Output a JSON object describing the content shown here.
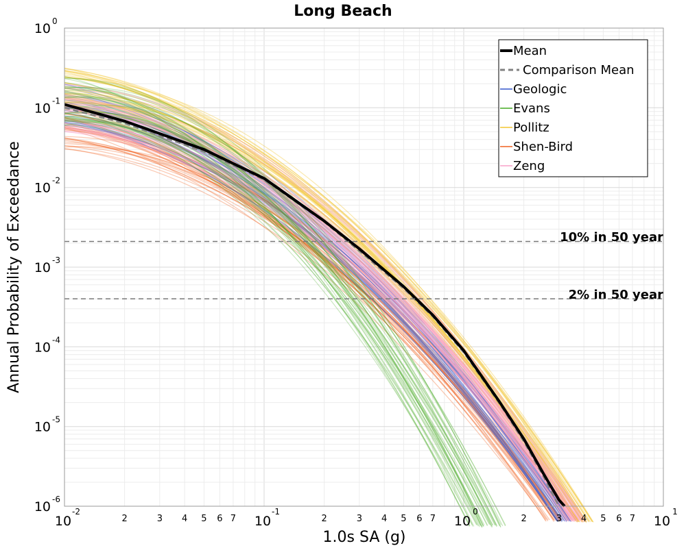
{
  "chart_data": {
    "type": "line",
    "title": "Long Beach",
    "xlabel": "1.0s SA (g)",
    "ylabel": "Annual Probability of Exceedance",
    "x_scale": "log",
    "y_scale": "log",
    "xlim": [
      0.01,
      10
    ],
    "ylim": [
      1e-06,
      1
    ],
    "grid": true,
    "legend_position": "top-right",
    "x_major_ticks": [
      {
        "base": "10",
        "exp": "-2",
        "value": 0.01
      },
      {
        "base": "10",
        "exp": "-1",
        "value": 0.1
      },
      {
        "base": "10",
        "exp": "0",
        "value": 1
      },
      {
        "base": "10",
        "exp": "1",
        "value": 10
      }
    ],
    "x_minor_ticks": [
      {
        "label": "2",
        "value": 0.02
      },
      {
        "label": "3",
        "value": 0.03
      },
      {
        "label": "4",
        "value": 0.04
      },
      {
        "label": "5",
        "value": 0.05
      },
      {
        "label": "6",
        "value": 0.06
      },
      {
        "label": "7",
        "value": 0.07
      },
      {
        "label": "2",
        "value": 0.2
      },
      {
        "label": "3",
        "value": 0.3
      },
      {
        "label": "4",
        "value": 0.4
      },
      {
        "label": "5",
        "value": 0.5
      },
      {
        "label": "6",
        "value": 0.6
      },
      {
        "label": "7",
        "value": 0.7
      },
      {
        "label": "2",
        "value": 2
      },
      {
        "label": "3",
        "value": 3
      },
      {
        "label": "4",
        "value": 4
      },
      {
        "label": "5",
        "value": 5
      },
      {
        "label": "6",
        "value": 6
      },
      {
        "label": "7",
        "value": 7
      }
    ],
    "y_major_ticks": [
      {
        "base": "10",
        "exp": "0",
        "value": 1
      },
      {
        "base": "10",
        "exp": "-1",
        "value": 0.1
      },
      {
        "base": "10",
        "exp": "-2",
        "value": 0.01
      },
      {
        "base": "10",
        "exp": "-3",
        "value": 0.001
      },
      {
        "base": "10",
        "exp": "-4",
        "value": 0.0001
      },
      {
        "base": "10",
        "exp": "-5",
        "value": 1e-05
      },
      {
        "base": "10",
        "exp": "-6",
        "value": 1e-06
      }
    ],
    "reference_lines": [
      {
        "label": "10% in 50 year",
        "y": 0.0021
      },
      {
        "label": "2% in 50 year",
        "y": 0.0004
      }
    ],
    "legend": [
      {
        "name": "Mean",
        "color": "#000000",
        "style": "solid-thick"
      },
      {
        "name": "Comparison Mean",
        "color": "#808080",
        "style": "dashed"
      },
      {
        "name": "Geologic",
        "color": "#3355cc",
        "style": "solid"
      },
      {
        "name": "Evans",
        "color": "#44aa22",
        "style": "solid"
      },
      {
        "name": "Pollitz",
        "color": "#f2c531",
        "style": "solid"
      },
      {
        "name": "Shen-Bird",
        "color": "#f06020",
        "style": "solid"
      },
      {
        "name": "Zeng",
        "color": "#f9a0c8",
        "style": "solid"
      }
    ],
    "mean_curve": {
      "name": "Mean",
      "x": [
        0.01,
        0.02,
        0.05,
        0.1,
        0.2,
        0.3,
        0.5,
        0.7,
        1.0,
        1.5,
        2.0,
        2.5,
        3.0,
        3.2
      ],
      "y": [
        0.11,
        0.068,
        0.03,
        0.013,
        0.0038,
        0.0017,
        0.00057,
        0.00025,
        9e-05,
        2.1e-05,
        7e-06,
        2.6e-06,
        1.2e-06,
        1e-06
      ]
    },
    "comparison_mean_curve": {
      "name": "Comparison Mean",
      "x": [
        0.01,
        0.02,
        0.05,
        0.1,
        0.2,
        0.3,
        0.5,
        0.7,
        1.0,
        1.5,
        2.0,
        2.5,
        3.0
      ],
      "y": [
        0.1,
        0.064,
        0.028,
        0.0125,
        0.0037,
        0.0016,
        0.00054,
        0.00024,
        8.5e-05,
        2e-05,
        6.5e-06,
        2.4e-06,
        1e-06
      ]
    },
    "series": [
      {
        "name": "Geologic",
        "x_end_at_1e-6": 2.9,
        "y_at_0.01": [
          0.06,
          0.2
        ]
      },
      {
        "name": "Evans",
        "x_end_at_1e-6": 1.2,
        "y_at_0.01": [
          0.06,
          0.25
        ]
      },
      {
        "name": "Pollitz",
        "x_end_at_1e-6": 3.8,
        "y_at_0.01": [
          0.1,
          0.33
        ]
      },
      {
        "name": "Shen-Bird",
        "x_end_at_1e-6": 3.3,
        "y_at_0.01": [
          0.03,
          0.12
        ]
      },
      {
        "name": "Zeng",
        "x_end_at_1e-6": 3.5,
        "y_at_0.01": [
          0.05,
          0.2
        ]
      }
    ]
  }
}
